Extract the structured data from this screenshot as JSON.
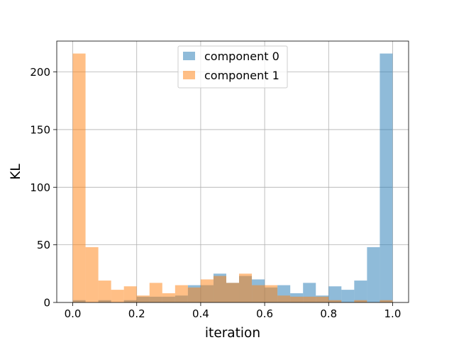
{
  "chart_data": {
    "type": "bar",
    "title": "",
    "xlabel": "iteration",
    "ylabel": "KL",
    "xlim": [
      -0.05,
      1.05
    ],
    "ylim": [
      0,
      226.8
    ],
    "grid": true,
    "legend_position": "top-center",
    "bin_width": 0.04,
    "bin_starts": [
      0.0,
      0.04,
      0.08,
      0.12,
      0.16,
      0.2,
      0.24,
      0.28,
      0.32,
      0.36,
      0.4,
      0.44,
      0.48,
      0.52,
      0.56,
      0.6,
      0.64,
      0.68,
      0.72,
      0.76,
      0.8,
      0.84,
      0.88,
      0.92,
      0.96
    ],
    "x_ticks": [
      "0.0",
      "0.2",
      "0.4",
      "0.6",
      "0.8",
      "1.0"
    ],
    "x_tick_values": [
      0.0,
      0.2,
      0.4,
      0.6,
      0.8,
      1.0
    ],
    "y_ticks": [
      "0",
      "50",
      "100",
      "150",
      "200"
    ],
    "y_tick_values": [
      0,
      50,
      100,
      150,
      200
    ],
    "series": [
      {
        "name": "component 0",
        "color": "#1f77b4",
        "values": [
          2,
          0,
          2,
          0,
          2,
          5,
          5,
          5,
          6,
          15,
          15,
          25,
          17,
          23,
          20,
          13,
          15,
          8,
          17,
          6,
          14,
          11,
          19,
          48,
          216
        ]
      },
      {
        "name": "component 1",
        "color": "#ff7f0e",
        "values": [
          216,
          48,
          19,
          11,
          14,
          6,
          17,
          8,
          15,
          13,
          20,
          23,
          17,
          25,
          15,
          15,
          6,
          5,
          5,
          5,
          2,
          0,
          2,
          0,
          2
        ]
      }
    ]
  }
}
